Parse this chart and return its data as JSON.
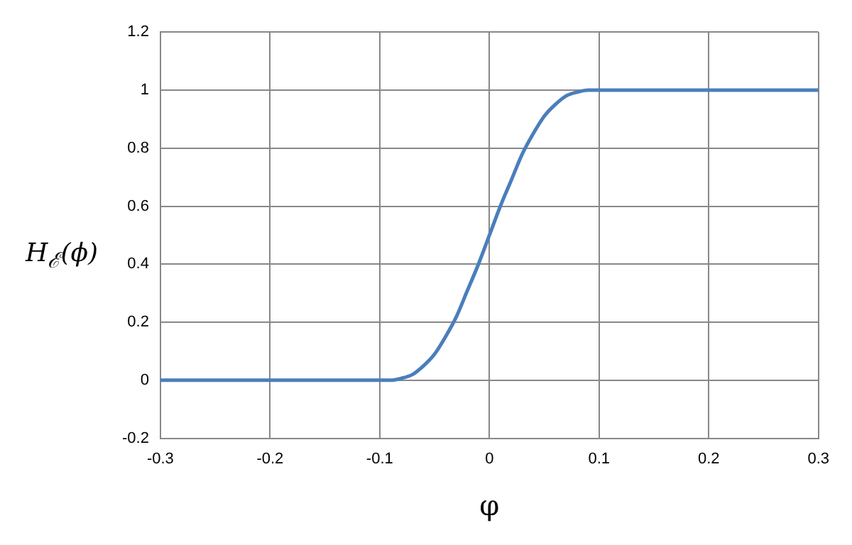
{
  "chart_data": {
    "type": "line",
    "xlabel": "φ",
    "ylabel": "H$_{ℰ}$(ϕ)",
    "x": [
      -0.3,
      -0.2,
      -0.1,
      -0.09,
      -0.08,
      -0.07,
      -0.06,
      -0.05,
      -0.04,
      -0.03,
      -0.02,
      -0.01,
      0,
      0.01,
      0.02,
      0.03,
      0.04,
      0.05,
      0.06,
      0.07,
      0.08,
      0.09,
      0.1,
      0.2,
      0.3
    ],
    "series": [
      {
        "color": "#4a7ebb",
        "values": [
          0,
          0,
          0,
          0,
          0.007,
          0.02,
          0.05,
          0.09,
          0.15,
          0.22,
          0.31,
          0.4,
          0.5,
          0.6,
          0.69,
          0.78,
          0.85,
          0.91,
          0.95,
          0.98,
          0.993,
          1,
          1,
          1,
          1
        ]
      }
    ],
    "xlim": [
      -0.3,
      0.3
    ],
    "xticks": [
      -0.3,
      -0.2,
      -0.1,
      0,
      0.1,
      0.2,
      0.3
    ],
    "ylim": [
      -0.2,
      1.2
    ],
    "yticks": [
      -0.2,
      0,
      0.2,
      0.4,
      0.6,
      0.8,
      1,
      1.2
    ],
    "grid": true,
    "legend": false,
    "marker": "none",
    "line_style": "solid"
  }
}
